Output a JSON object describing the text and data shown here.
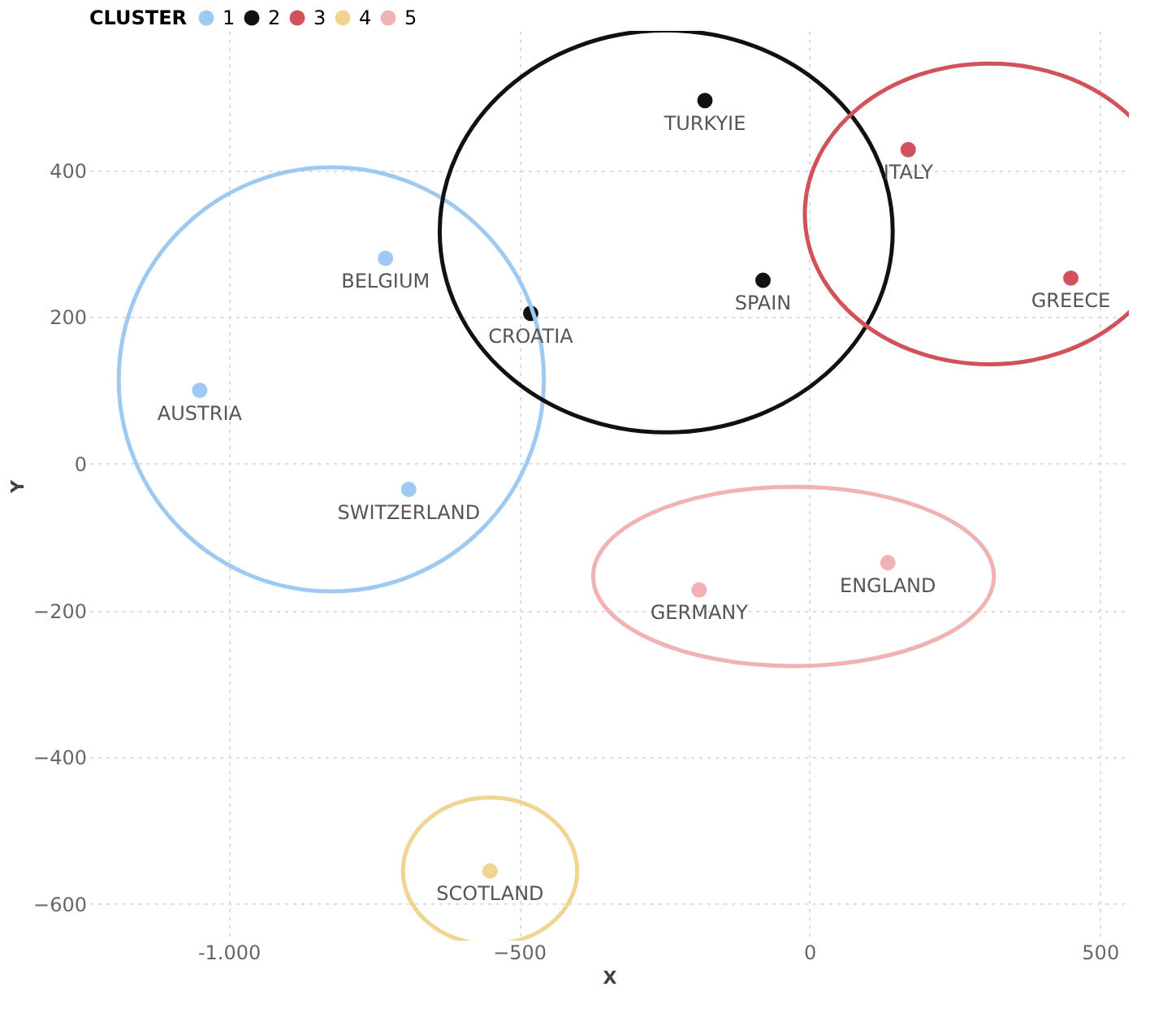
{
  "chart_data": {
    "type": "scatter",
    "xlabel": "X",
    "ylabel": "Y",
    "legend_title": "CLUSTER",
    "legend": "top left",
    "marker": "circle",
    "grid": true,
    "xlim": [
      -1240,
      550
    ],
    "ylim": [
      -650,
      590
    ],
    "xticks": [
      {
        "value": -1000,
        "label": "-1.000"
      },
      -500,
      0,
      500
    ],
    "yticks": [
      -600,
      -400,
      -200,
      0,
      200,
      400
    ],
    "series": [
      {
        "name": "1",
        "color": "#9ecaf2",
        "x": [
          -1050,
          -730,
          -690
        ],
        "values": [
          100,
          280,
          -35
        ]
      },
      {
        "name": "2",
        "color": "#111111",
        "x": [
          -480,
          -180,
          -80
        ],
        "values": [
          205,
          495,
          250
        ]
      },
      {
        "name": "3",
        "color": "#d2525c",
        "x": [
          170,
          450
        ],
        "values": [
          428,
          253
        ]
      },
      {
        "name": "4",
        "color": "#f0d592",
        "x": [
          -550
        ],
        "values": [
          -555
        ]
      },
      {
        "name": "5",
        "color": "#f0b2b2",
        "x": [
          -190,
          135
        ],
        "values": [
          -172,
          -135
        ]
      }
    ],
    "annotations": [
      {
        "text": "AUSTRIA",
        "x": -1050,
        "y": 100
      },
      {
        "text": "BELGIUM",
        "x": -730,
        "y": 280
      },
      {
        "text": "SWITZERLAND",
        "x": -690,
        "y": -35
      },
      {
        "text": "CROATIA",
        "x": -480,
        "y": 205
      },
      {
        "text": "TURKYIE",
        "x": -180,
        "y": 495
      },
      {
        "text": "SPAIN",
        "x": -80,
        "y": 250
      },
      {
        "text": "ITALY",
        "x": 170,
        "y": 428
      },
      {
        "text": "GREECE",
        "x": 450,
        "y": 253
      },
      {
        "text": "SCOTLAND",
        "x": -550,
        "y": -555
      },
      {
        "text": "GERMANY",
        "x": -190,
        "y": -172
      },
      {
        "text": "ENGLAND",
        "x": 135,
        "y": -135
      }
    ]
  }
}
